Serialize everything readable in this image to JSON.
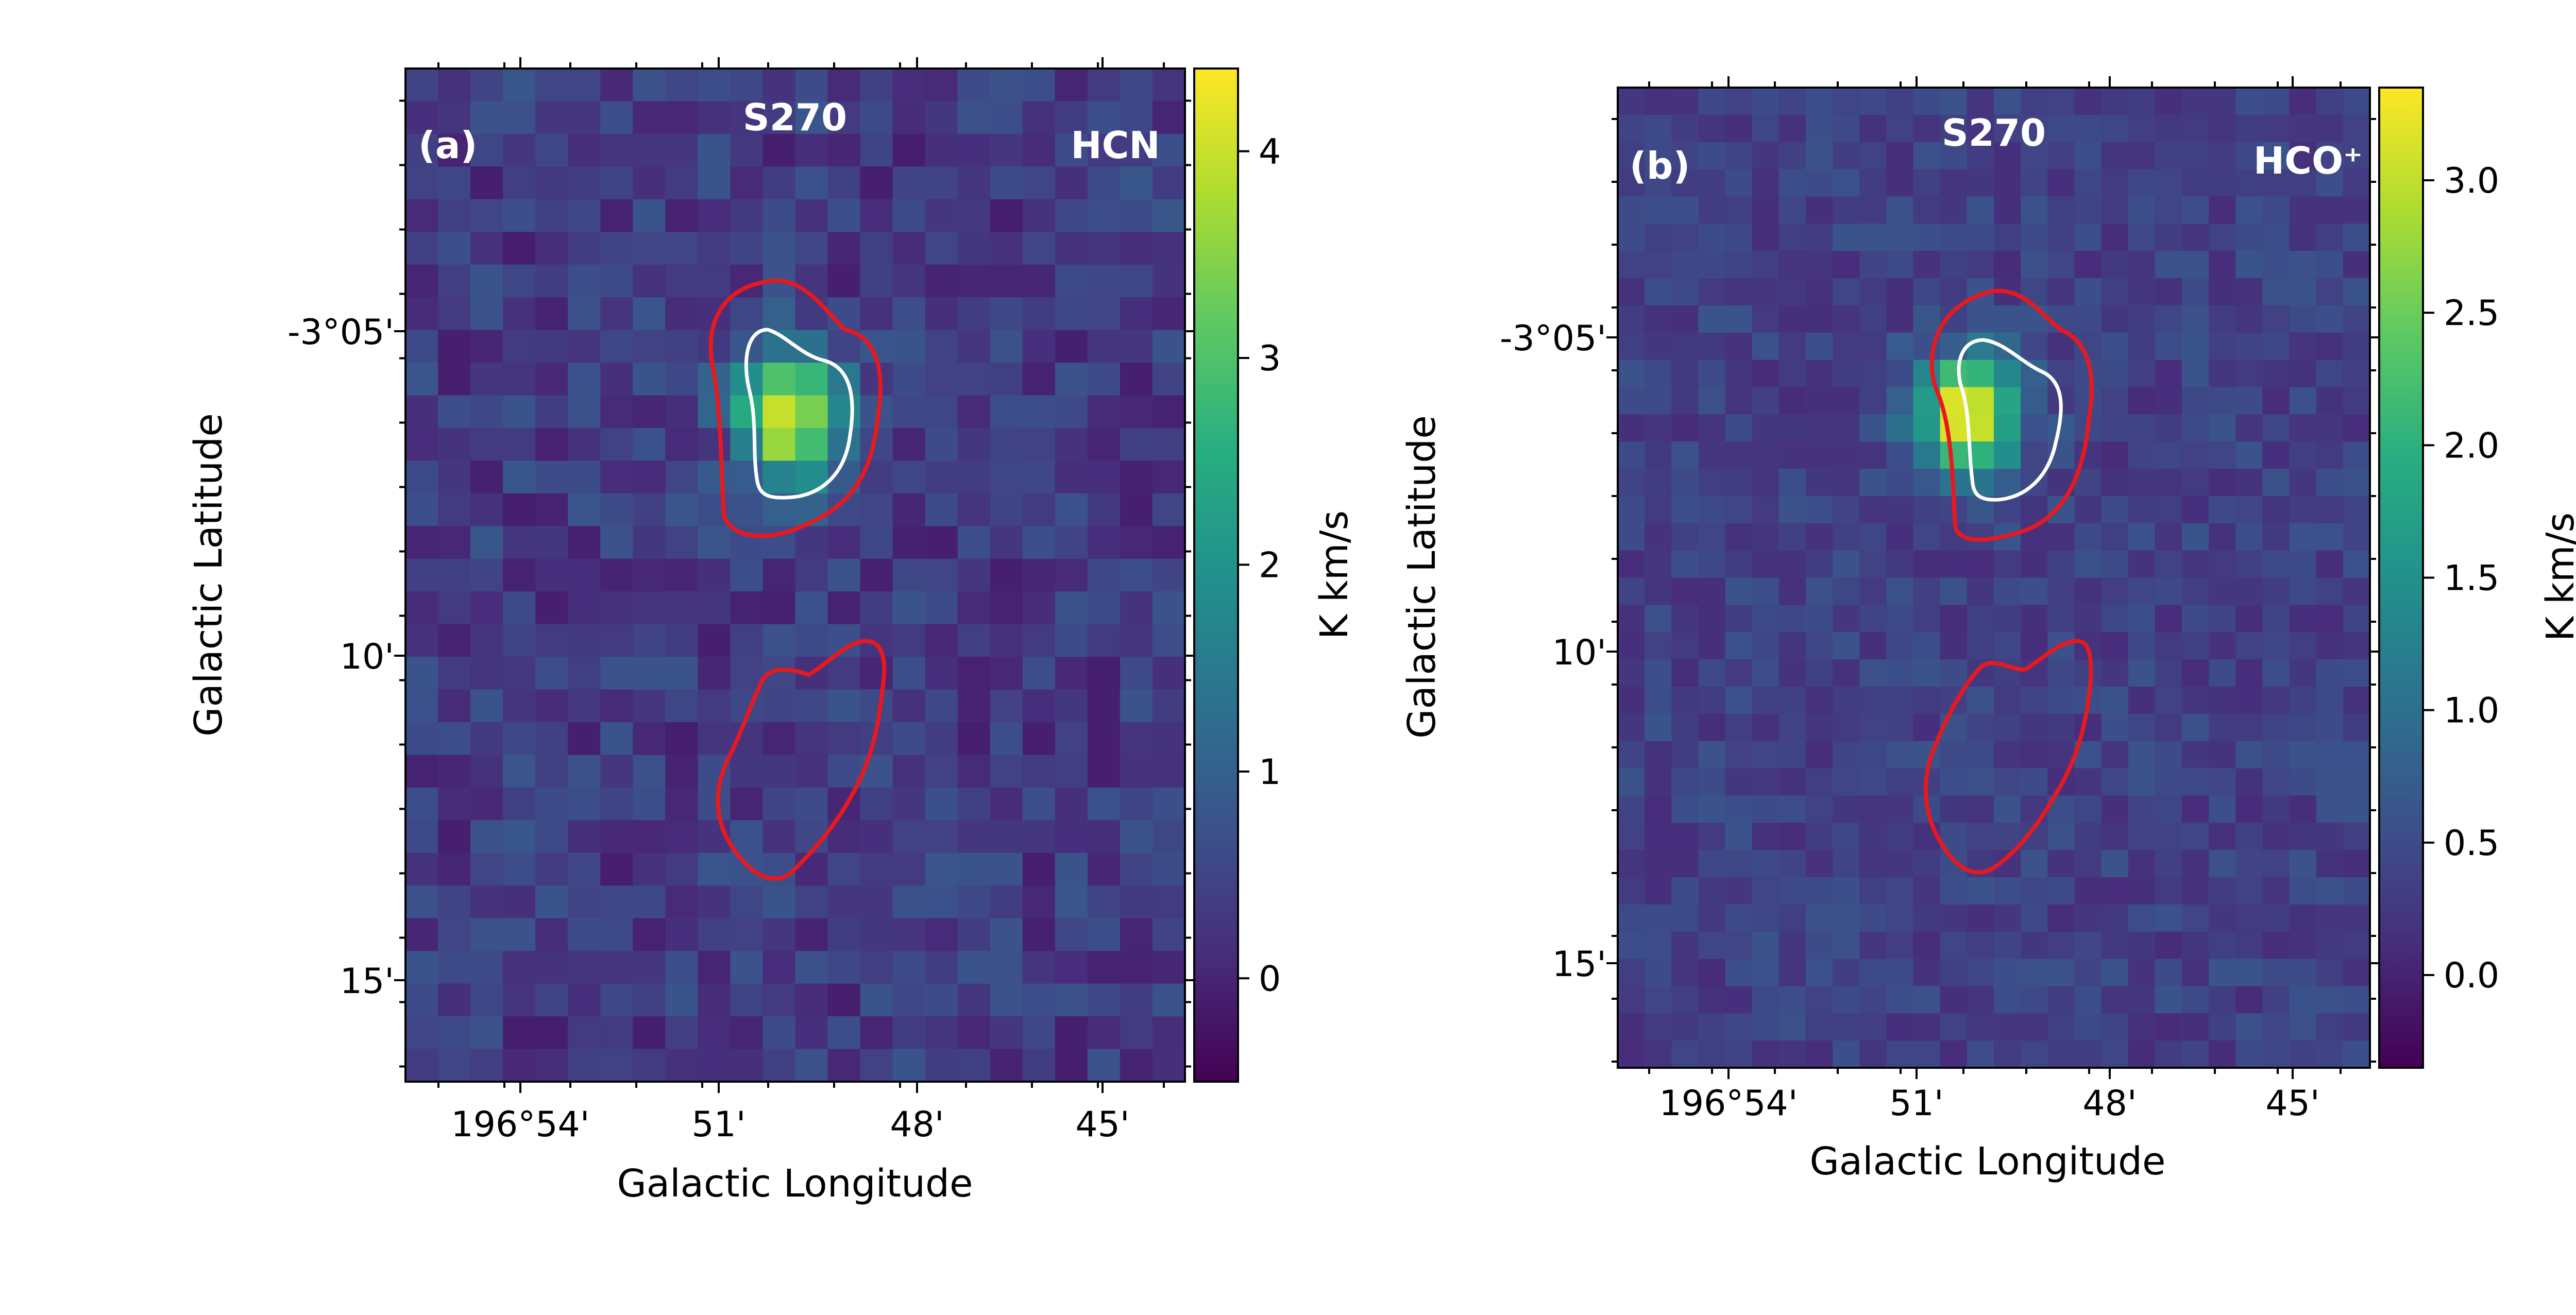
{
  "chart_data": [
    {
      "type": "heatmap",
      "panel_label": "(a)",
      "title": "S270",
      "tracer": "HCN",
      "xlabel": "Galactic Longitude",
      "ylabel": "Galactic Latitude",
      "colorbar_label": "K km/s",
      "colormap": "viridis",
      "clim": [
        -0.5,
        4.4
      ],
      "colorbar_ticks": [
        "0",
        "1",
        "2",
        "3",
        "4"
      ],
      "x_ticks": [
        "196°54'",
        "51'",
        "48'",
        "45'"
      ],
      "y_ticks": [
        "-3°05'",
        "10'",
        "15'"
      ],
      "peak": 4.3,
      "contours": [
        {
          "name": "outer",
          "color": "#e8191e"
        },
        {
          "name": "inner",
          "color": "#ffffff"
        }
      ]
    },
    {
      "type": "heatmap",
      "panel_label": "(b)",
      "title": "S270",
      "tracer": "HCO⁺",
      "xlabel": "Galactic Longitude",
      "ylabel": "Galactic Latitude",
      "colorbar_label": "K km/s",
      "colormap": "viridis",
      "clim": [
        -0.35,
        3.35
      ],
      "colorbar_ticks": [
        "0.0",
        "0.5",
        "1.0",
        "1.5",
        "2.0",
        "2.5",
        "3.0"
      ],
      "x_ticks": [
        "196°54'",
        "51'",
        "48'",
        "45'"
      ],
      "y_ticks": [
        "-3°05'",
        "10'",
        "15'"
      ],
      "peak": 3.3,
      "contours": [
        {
          "name": "outer",
          "color": "#e8191e"
        },
        {
          "name": "inner",
          "color": "#ffffff"
        }
      ]
    }
  ]
}
